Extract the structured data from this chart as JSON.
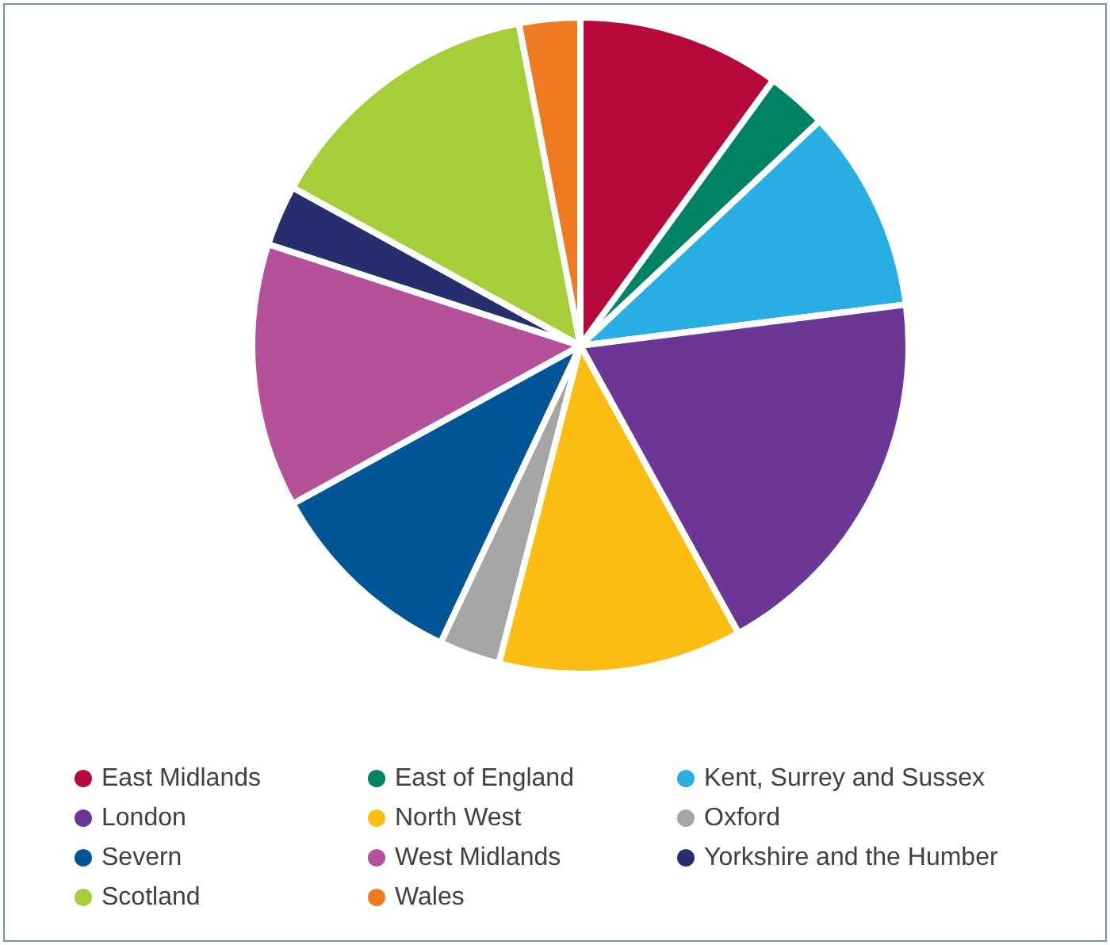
{
  "chart_data": {
    "type": "pie",
    "categories": [
      "East Midlands",
      "East of England",
      "Kent, Surrey and Sussex",
      "London",
      "North West",
      "Oxford",
      "Severn",
      "West Midlands",
      "Yorkshire and the Humber",
      "Scotland",
      "Wales"
    ],
    "values": [
      10,
      3,
      10,
      19,
      12,
      3,
      10,
      13,
      3,
      14,
      3
    ],
    "colors": [
      "#b5093a",
      "#008265",
      "#29aee4",
      "#6c3696",
      "#fbbd12",
      "#a5a5a5",
      "#005596",
      "#b5519b",
      "#262e6e",
      "#a6cd3a",
      "#ee7b22"
    ],
    "legend": "bottom"
  }
}
